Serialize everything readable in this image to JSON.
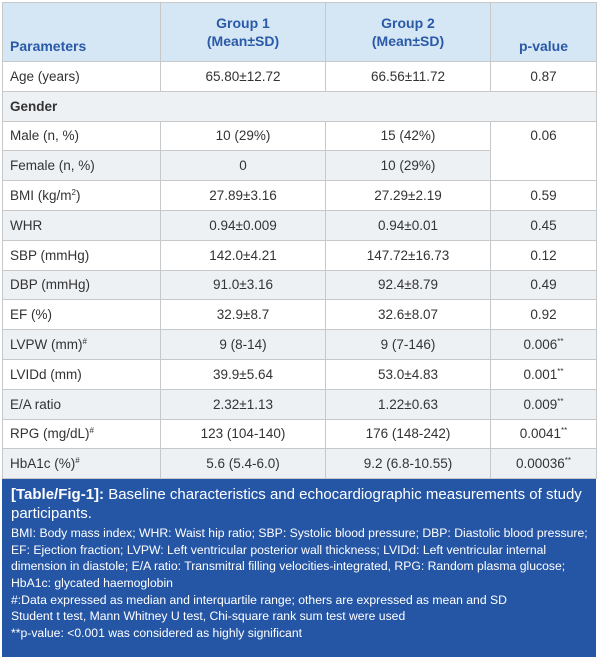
{
  "table": {
    "headers": {
      "parameters": "Parameters",
      "group1_line1": "Group 1",
      "group1_line2": "(Mean±SD)",
      "group2_line1": "Group 2",
      "group2_line2": "(Mean±SD)",
      "pvalue": "p-value"
    },
    "rows": {
      "age": {
        "param": "Age (years)",
        "g1": "65.80±12.72",
        "g2": "66.56±11.72",
        "p": "0.87"
      },
      "gender": {
        "param": "Gender"
      },
      "male": {
        "param": "Male (n, %)",
        "g1": "10 (29%)",
        "g2": "15 (42%)",
        "p": "0.06"
      },
      "female": {
        "param": "Female (n, %)",
        "g1": "0",
        "g2": "10 (29%)"
      },
      "bmi": {
        "param": "BMI (kg/m",
        "sup": "2",
        "param_end": ")",
        "g1": "27.89±3.16",
        "g2": "27.29±2.19",
        "p": "0.59"
      },
      "whr": {
        "param": "WHR",
        "g1": "0.94±0.009",
        "g2": "0.94±0.01",
        "p": "0.45"
      },
      "sbp": {
        "param": "SBP (mmHg)",
        "g1": "142.0±4.21",
        "g2": "147.72±16.73",
        "p": "0.12"
      },
      "dbp": {
        "param": "DBP (mmHg)",
        "g1": "91.0±3.16",
        "g2": "92.4±8.79",
        "p": "0.49"
      },
      "ef": {
        "param": "EF (%)",
        "g1": "32.9±8.7",
        "g2": "32.6±8.07",
        "p": "0.92"
      },
      "lvpw": {
        "param": "LVPW (mm)",
        "sup": "#",
        "g1": "9 (8-14)",
        "g2": "9 (7-146)",
        "p": "0.006",
        "p_sup": "**"
      },
      "lvidd": {
        "param": "LVIDd (mm)",
        "g1": "39.9±5.64",
        "g2": "53.0±4.83",
        "p": "0.001",
        "p_sup": "**"
      },
      "ea": {
        "param": "E/A ratio",
        "g1": "2.32±1.13",
        "g2": "1.22±0.63",
        "p": "0.009",
        "p_sup": "**"
      },
      "rpg": {
        "param": "RPG (mg/dL)",
        "sup": "#",
        "g1": "123 (104-140)",
        "g2": "176 (148-242)",
        "p": "0.0041",
        "p_sup": "**"
      },
      "hba1c": {
        "param": "HbA1c (%)",
        "sup": "#",
        "g1": "5.6 (5.4-6.0)",
        "g2": "9.2 (6.8-10.55)",
        "p": "0.00036",
        "p_sup": "**"
      }
    }
  },
  "caption": {
    "label": "[Table/Fig-1]:",
    "title": " Baseline characteristics and echocardiographic measurements of study participants.",
    "abbreviations": "BMI: Body mass index; WHR: Waist hip ratio; SBP: Systolic blood pressure; DBP: Diastolic blood pressure; EF: Ejection fraction; LVPW: Left ventricular posterior wall thickness; LVIDd: Left ventricular internal dimension in diastole; E/A ratio: Transmitral filling velocities-integrated, RPG: Random plasma glucose; HbA1c: glycated haemoglobin",
    "note_median": "#:Data expressed as median and interquartile range; others are expressed as mean and SD",
    "note_tests": "Student t test, Mann Whitney U test, Chi-square rank sum test were used",
    "note_significance": "**p-value: <0.001 was considered as highly significant"
  },
  "colors": {
    "header_bg": "#d5e6f5",
    "header_text": "#2a5aa7",
    "row_alt_bg": "#eef1f4",
    "caption_bg": "#2556a6"
  }
}
